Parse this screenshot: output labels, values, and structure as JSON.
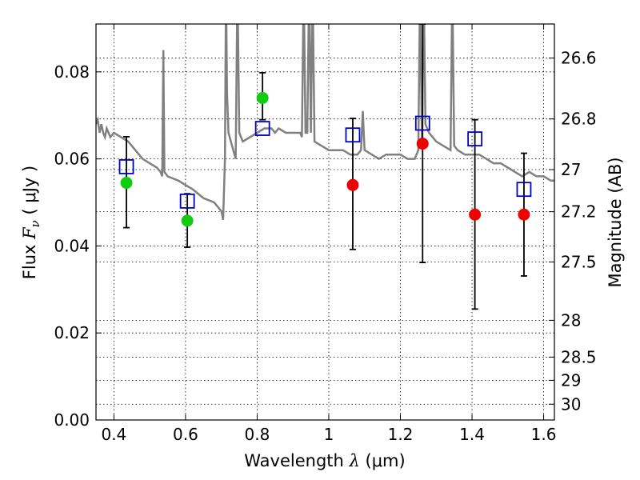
{
  "chart_data": {
    "type": "scatter",
    "title": "",
    "xlabel": {
      "prefix": "Wavelength ",
      "symbol": "λ",
      "unit": " (μm)"
    },
    "ylabel": {
      "prefix": "Flux ",
      "symbol": "F",
      "subscript": "ν",
      "unit": " ( μJy )"
    },
    "y2label": "Magnitude (AB)",
    "xlim": [
      0.35,
      1.63
    ],
    "ylim": [
      0.0,
      0.091
    ],
    "grid": true,
    "x_ticks": [
      0.4,
      0.6,
      0.8,
      1.0,
      1.2,
      1.4,
      1.6
    ],
    "x_tick_labels": [
      "0.4",
      "0.6",
      "0.8",
      "1",
      "1.2",
      "1.4",
      "1.6"
    ],
    "y_ticks": [
      0.0,
      0.02,
      0.04,
      0.06,
      0.08
    ],
    "y_tick_labels": [
      "0.00",
      "0.02",
      "0.04",
      "0.06",
      "0.08"
    ],
    "y2_ticks": [
      26.6,
      26.8,
      27,
      27.2,
      27.5,
      28,
      28.5,
      29,
      30
    ],
    "y2_tick_labels": [
      "26.6",
      "26.8",
      "27",
      "27.2",
      "27.5",
      "28",
      "28.5",
      "29",
      "30"
    ],
    "colors": {
      "spectrum": "#808080",
      "model_box": "#0000cc",
      "green": "#11cc11",
      "red": "#ee0000",
      "error": "#000000"
    },
    "spectrum": [
      [
        0.35,
        0.068
      ],
      [
        0.355,
        0.069
      ],
      [
        0.36,
        0.066
      ],
      [
        0.365,
        0.068
      ],
      [
        0.37,
        0.066
      ],
      [
        0.375,
        0.065
      ],
      [
        0.38,
        0.067
      ],
      [
        0.39,
        0.065
      ],
      [
        0.4,
        0.066
      ],
      [
        0.42,
        0.065
      ],
      [
        0.44,
        0.064
      ],
      [
        0.45,
        0.063
      ],
      [
        0.46,
        0.062
      ],
      [
        0.48,
        0.06
      ],
      [
        0.5,
        0.059
      ],
      [
        0.52,
        0.058
      ],
      [
        0.53,
        0.057
      ],
      [
        0.535,
        0.056
      ],
      [
        0.538,
        0.085
      ],
      [
        0.541,
        0.057
      ],
      [
        0.55,
        0.056
      ],
      [
        0.58,
        0.055
      ],
      [
        0.6,
        0.054
      ],
      [
        0.62,
        0.053
      ],
      [
        0.65,
        0.051
      ],
      [
        0.68,
        0.05
      ],
      [
        0.7,
        0.048
      ],
      [
        0.705,
        0.046
      ],
      [
        0.71,
        0.06
      ],
      [
        0.713,
        0.1
      ],
      [
        0.716,
        0.075
      ],
      [
        0.72,
        0.066
      ],
      [
        0.73,
        0.063
      ],
      [
        0.74,
        0.06
      ],
      [
        0.745,
        0.1
      ],
      [
        0.75,
        0.066
      ],
      [
        0.76,
        0.064
      ],
      [
        0.78,
        0.065
      ],
      [
        0.8,
        0.066
      ],
      [
        0.82,
        0.067
      ],
      [
        0.84,
        0.067
      ],
      [
        0.85,
        0.066
      ],
      [
        0.86,
        0.067
      ],
      [
        0.88,
        0.066
      ],
      [
        0.9,
        0.066
      ],
      [
        0.92,
        0.066
      ],
      [
        0.925,
        0.065
      ],
      [
        0.93,
        0.1
      ],
      [
        0.935,
        0.066
      ],
      [
        0.94,
        0.066
      ],
      [
        0.945,
        0.1
      ],
      [
        0.95,
        0.066
      ],
      [
        0.955,
        0.1
      ],
      [
        0.96,
        0.064
      ],
      [
        0.98,
        0.063
      ],
      [
        1.0,
        0.062
      ],
      [
        1.02,
        0.062
      ],
      [
        1.04,
        0.062
      ],
      [
        1.06,
        0.061
      ],
      [
        1.08,
        0.061
      ],
      [
        1.09,
        0.062
      ],
      [
        1.095,
        0.071
      ],
      [
        1.1,
        0.062
      ],
      [
        1.12,
        0.061
      ],
      [
        1.14,
        0.06
      ],
      [
        1.16,
        0.061
      ],
      [
        1.18,
        0.061
      ],
      [
        1.2,
        0.061
      ],
      [
        1.22,
        0.06
      ],
      [
        1.24,
        0.06
      ],
      [
        1.25,
        0.062
      ],
      [
        1.255,
        0.1
      ],
      [
        1.26,
        0.064
      ],
      [
        1.265,
        0.1
      ],
      [
        1.27,
        0.068
      ],
      [
        1.28,
        0.066
      ],
      [
        1.29,
        0.065
      ],
      [
        1.3,
        0.064
      ],
      [
        1.32,
        0.063
      ],
      [
        1.34,
        0.062
      ],
      [
        1.345,
        0.1
      ],
      [
        1.35,
        0.063
      ],
      [
        1.36,
        0.062
      ],
      [
        1.38,
        0.061
      ],
      [
        1.4,
        0.061
      ],
      [
        1.42,
        0.061
      ],
      [
        1.44,
        0.06
      ],
      [
        1.46,
        0.059
      ],
      [
        1.48,
        0.059
      ],
      [
        1.5,
        0.058
      ],
      [
        1.52,
        0.057
      ],
      [
        1.54,
        0.056
      ],
      [
        1.56,
        0.057
      ],
      [
        1.58,
        0.056
      ],
      [
        1.6,
        0.056
      ],
      [
        1.62,
        0.055
      ],
      [
        1.63,
        0.055
      ]
    ],
    "model_boxes": [
      {
        "x": 0.435,
        "y": 0.0582
      },
      {
        "x": 0.605,
        "y": 0.0503
      },
      {
        "x": 0.815,
        "y": 0.067
      },
      {
        "x": 1.067,
        "y": 0.0655
      },
      {
        "x": 1.262,
        "y": 0.0682
      },
      {
        "x": 1.408,
        "y": 0.0646
      },
      {
        "x": 1.545,
        "y": 0.053
      }
    ],
    "points": [
      {
        "x": 0.435,
        "y": 0.0545,
        "err_low": 0.0442,
        "err_high": 0.0651,
        "color": "green"
      },
      {
        "x": 0.605,
        "y": 0.0458,
        "err_low": 0.0397,
        "err_high": 0.052,
        "color": "green"
      },
      {
        "x": 0.815,
        "y": 0.074,
        "err_low": 0.069,
        "err_high": 0.0798,
        "color": "green"
      },
      {
        "x": 1.067,
        "y": 0.054,
        "err_low": 0.0392,
        "err_high": 0.0693,
        "color": "red"
      },
      {
        "x": 1.262,
        "y": 0.0635,
        "err_low": 0.0362,
        "err_high": 0.091,
        "color": "red"
      },
      {
        "x": 1.408,
        "y": 0.0472,
        "err_low": 0.0255,
        "err_high": 0.069,
        "color": "red"
      },
      {
        "x": 1.545,
        "y": 0.0472,
        "err_low": 0.0331,
        "err_high": 0.0613,
        "color": "red"
      }
    ]
  }
}
